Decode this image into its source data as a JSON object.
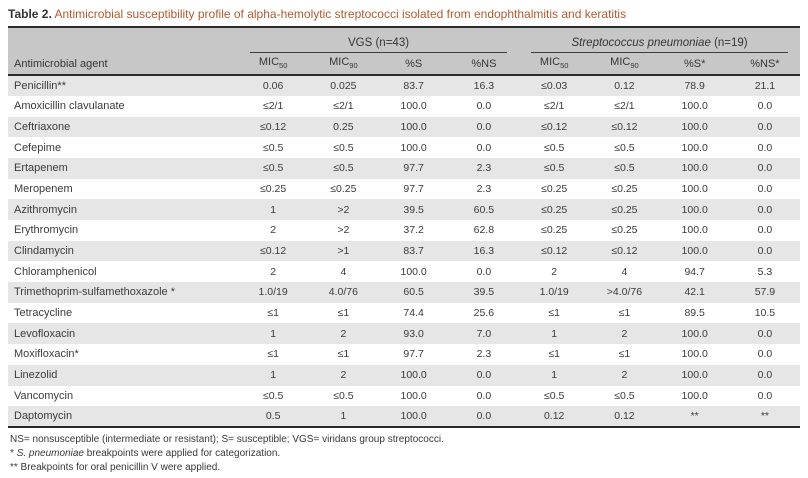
{
  "title": {
    "label": "Table 2.",
    "text": "Antimicrobial susceptibility profile of alpha-hemolytic streptococci isolated from endophthalmitis and keratitis"
  },
  "colors": {
    "title_accent": "#b25a2f",
    "header_bg": "#c7c7c7",
    "row_alt_bg": "#e6e6e6",
    "border_dark": "#2b2b2b"
  },
  "table": {
    "agent_header": "Antimicrobial agent",
    "groups": [
      {
        "label": "VGS (n=43)"
      },
      {
        "species": "Streptococcus pneumoniae",
        "suffix": "(n=19)"
      }
    ],
    "subheaders": [
      {
        "base": "MIC",
        "sub": "50"
      },
      {
        "base": "MIC",
        "sub": "90"
      },
      {
        "base": "%S"
      },
      {
        "base": "%NS"
      },
      {
        "base": "MIC",
        "sub": "50"
      },
      {
        "base": "MIC",
        "sub": "90"
      },
      {
        "base": "%S*"
      },
      {
        "base": "%NS*"
      }
    ],
    "rows": [
      {
        "agent": "Penicillin**",
        "values": [
          "0.06",
          "0.025",
          "83.7",
          "16.3",
          "≤0.03",
          "0.12",
          "78.9",
          "21.1"
        ]
      },
      {
        "agent": "Amoxicillin clavulanate",
        "values": [
          "≤2/1",
          "≤2/1",
          "100.0",
          "0.0",
          "≤2/1",
          "≤2/1",
          "100.0",
          "0.0"
        ]
      },
      {
        "agent": "Ceftriaxone",
        "values": [
          "≤0.12",
          "0.25",
          "100.0",
          "0.0",
          "≤0.12",
          "≤0.12",
          "100.0",
          "0.0"
        ]
      },
      {
        "agent": "Cefepime",
        "values": [
          "≤0.5",
          "≤0.5",
          "100.0",
          "0.0",
          "≤0.5",
          "≤0.5",
          "100.0",
          "0.0"
        ]
      },
      {
        "agent": "Ertapenem",
        "values": [
          "≤0.5",
          "≤0.5",
          "97.7",
          "2.3",
          "≤0.5",
          "≤0.5",
          "100.0",
          "0.0"
        ]
      },
      {
        "agent": "Meropenem",
        "values": [
          "≤0.25",
          "≤0.25",
          "97.7",
          "2.3",
          "≤0.25",
          "≤0.25",
          "100.0",
          "0.0"
        ]
      },
      {
        "agent": "Azithromycin",
        "values": [
          "1",
          ">2",
          "39.5",
          "60.5",
          "≤0.25",
          "≤0.25",
          "100.0",
          "0.0"
        ]
      },
      {
        "agent": "Erythromycin",
        "values": [
          "2",
          ">2",
          "37.2",
          "62.8",
          "≤0.25",
          "≤0.25",
          "100.0",
          "0.0"
        ]
      },
      {
        "agent": "Clindamycin",
        "values": [
          "≤0.12",
          ">1",
          "83.7",
          "16.3",
          "≤0.12",
          "≤0.12",
          "100.0",
          "0.0"
        ]
      },
      {
        "agent": "Chloramphenicol",
        "values": [
          "2",
          "4",
          "100.0",
          "0.0",
          "2",
          "4",
          "94.7",
          "5.3"
        ]
      },
      {
        "agent": "Trimethoprim-sulfamethoxazole *",
        "values": [
          "1.0/19",
          "4.0/76",
          "60.5",
          "39.5",
          "1.0/19",
          ">4.0/76",
          "42.1",
          "57.9"
        ]
      },
      {
        "agent": "Tetracycline",
        "values": [
          "≤1",
          "≤1",
          "74.4",
          "25.6",
          "≤1",
          "≤1",
          "89.5",
          "10.5"
        ]
      },
      {
        "agent": "Levofloxacin",
        "values": [
          "1",
          "2",
          "93.0",
          "7.0",
          "1",
          "2",
          "100.0",
          "0.0"
        ]
      },
      {
        "agent": "Moxifloxacin*",
        "values": [
          "≤1",
          "≤1",
          "97.7",
          "2.3",
          "≤1",
          "≤1",
          "100.0",
          "0.0"
        ]
      },
      {
        "agent": "Linezolid",
        "values": [
          "1",
          "2",
          "100.0",
          "0.0",
          "1",
          "2",
          "100.0",
          "0.0"
        ]
      },
      {
        "agent": "Vancomycin",
        "values": [
          "≤0.5",
          "≤0.5",
          "100.0",
          "0.0",
          "≤0.5",
          "≤0.5",
          "100.0",
          "0.0"
        ]
      },
      {
        "agent": "Daptomycin",
        "values": [
          "0.5",
          "1",
          "100.0",
          "0.0",
          "0.12",
          "0.12",
          "**",
          "**"
        ]
      }
    ]
  },
  "footnotes": {
    "abbreviations": "NS= nonsusceptible (intermediate or resistant); S= susceptible; VGS= viridans group streptococci.",
    "single": {
      "marker": "*",
      "italic": "S. pneumoniae",
      "rest": "breakpoints were applied for categorization."
    },
    "double": "** Breakpoints for oral penicillin V were applied."
  }
}
